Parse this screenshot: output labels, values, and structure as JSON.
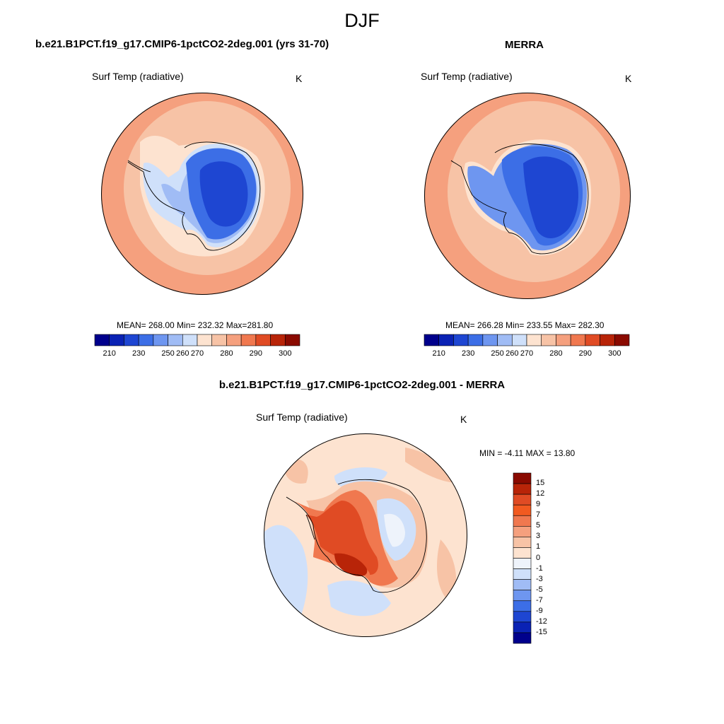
{
  "figure": {
    "season": "DJF"
  },
  "panels": [
    {
      "title": "b.e21.B1PCT.f19_g17.CMIP6-1pctCO2-2deg.001 (yrs 31-70)",
      "subtitle": "Surf Temp (radiative)",
      "units": "K",
      "stats": "MEAN= 268.00  Min= 232.32  Max=281.80",
      "colorbar": {
        "labels": [
          "210",
          "230",
          "250",
          "260",
          "270",
          "280",
          "290",
          "300"
        ],
        "colors": [
          "#00008c",
          "#0a22b4",
          "#1e46d2",
          "#3c6ee6",
          "#6e96f0",
          "#a0bcf5",
          "#cfe0fa",
          "#fde3d0",
          "#f7c3a6",
          "#f5a07e",
          "#f0784f",
          "#e04b24",
          "#b82408",
          "#8a0a00"
        ]
      }
    },
    {
      "title": "MERRA",
      "subtitle": "Surf Temp (radiative)",
      "units": "K",
      "stats": "MEAN= 266.28  Min= 233.55  Max= 282.30",
      "colorbar": {
        "labels": [
          "210",
          "230",
          "250",
          "260",
          "270",
          "280",
          "290",
          "300"
        ],
        "colors": [
          "#00008c",
          "#0a22b4",
          "#1e46d2",
          "#3c6ee6",
          "#6e96f0",
          "#a0bcf5",
          "#cfe0fa",
          "#fde3d0",
          "#f7c3a6",
          "#f5a07e",
          "#f0784f",
          "#e04b24",
          "#b82408",
          "#8a0a00"
        ]
      }
    },
    {
      "title": "b.e21.B1PCT.f19_g17.CMIP6-1pctCO2-2deg.001 - MERRA",
      "subtitle": "Surf Temp (radiative)",
      "units": "K",
      "stats": "MIN =  -4.11 MAX =  13.80",
      "colorbar": {
        "labels": [
          "15",
          "12",
          "9",
          "7",
          "5",
          "3",
          "1",
          "0",
          "-1",
          "-3",
          "-5",
          "-7",
          "-9",
          "-12",
          "-15"
        ],
        "colors": [
          "#8a0a00",
          "#b82408",
          "#e04b24",
          "#f25a20",
          "#f0784f",
          "#f5a07e",
          "#f7c3a6",
          "#fde3d0",
          "#eef3fb",
          "#cfe0fa",
          "#a0bcf5",
          "#6e96f0",
          "#3c6ee6",
          "#1e46d2",
          "#0a22b4",
          "#00008c"
        ]
      }
    }
  ]
}
